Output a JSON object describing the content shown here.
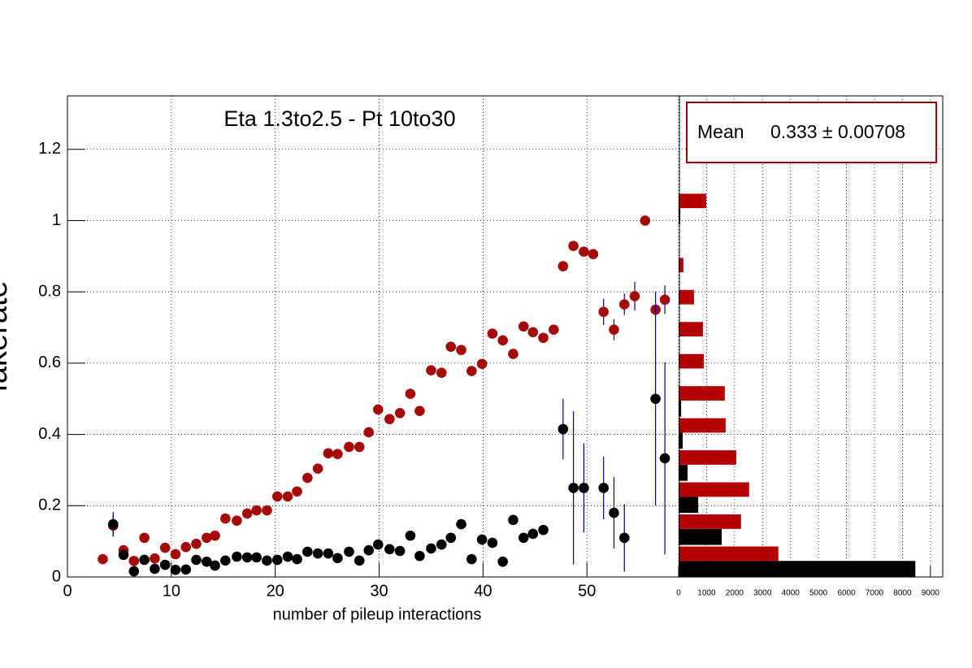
{
  "chart_data": [
    {
      "type": "scatter",
      "title": "Eta 1.3to2.5 - Pt 10to30",
      "xlabel": "number of pileup interactions",
      "ylabel": "fakerate",
      "xlim": [
        0,
        58.9
      ],
      "ylim": [
        0,
        1.35
      ],
      "xticks": [
        0,
        10,
        20,
        30,
        40,
        50
      ],
      "yticks": [
        0,
        0.2,
        0.4,
        0.6,
        0.8,
        1,
        1.2
      ],
      "grid": true,
      "error_color": "#000080",
      "series": [
        {
          "color": "#a50a0a",
          "x": [
            3.4,
            4.4,
            5.4,
            6.4,
            7.4,
            8.4,
            9.4,
            10.4,
            11.4,
            12.4,
            13.4,
            14.2,
            15.2,
            16.3,
            17.3,
            18.2,
            19.2,
            20.2,
            21.2,
            22.1,
            23.1,
            24.1,
            25.1,
            26.0,
            27.1,
            28.1,
            29.0,
            29.9,
            31.0,
            32.0,
            33.0,
            33.9,
            35.0,
            36.0,
            36.9,
            37.9,
            38.9,
            39.9,
            40.9,
            41.9,
            42.9,
            43.9,
            44.8,
            45.8,
            46.8,
            47.7,
            48.7,
            49.7,
            50.6,
            51.6,
            52.6,
            53.6,
            54.6,
            55.6,
            56.6,
            57.5
          ],
          "values": [
            0.05,
            0.144,
            0.075,
            0.045,
            0.11,
            0.052,
            0.082,
            0.064,
            0.084,
            0.093,
            0.11,
            0.116,
            0.164,
            0.158,
            0.178,
            0.187,
            0.187,
            0.226,
            0.226,
            0.24,
            0.278,
            0.304,
            0.347,
            0.345,
            0.365,
            0.365,
            0.406,
            0.47,
            0.443,
            0.46,
            0.514,
            0.466,
            0.58,
            0.573,
            0.646,
            0.637,
            0.578,
            0.598,
            0.683,
            0.664,
            0.626,
            0.703,
            0.687,
            0.671,
            0.694,
            0.872,
            0.929,
            0.913,
            0.906,
            0.744,
            0.694,
            0.765,
            0.788,
            1.0,
            0.75,
            0.778
          ],
          "errors": [
            0,
            0.03,
            0,
            0,
            0,
            0,
            0,
            0,
            0,
            0,
            0,
            0,
            0,
            0,
            0,
            0,
            0,
            0,
            0,
            0,
            0,
            0,
            0,
            0,
            0,
            0,
            0,
            0,
            0,
            0,
            0,
            0,
            0,
            0,
            0,
            0,
            0,
            0,
            0,
            0,
            0,
            0,
            0,
            0,
            0,
            0,
            0,
            0,
            0,
            0.037,
            0.03,
            0.03,
            0.04,
            0,
            0,
            0.04
          ]
        },
        {
          "color": "#000000",
          "x": [
            4.4,
            5.4,
            6.4,
            7.4,
            8.4,
            9.4,
            10.4,
            11.4,
            12.4,
            13.4,
            14.2,
            15.2,
            16.3,
            17.3,
            18.2,
            19.2,
            20.2,
            21.2,
            22.1,
            23.1,
            24.1,
            25.1,
            26.0,
            27.1,
            28.1,
            29.0,
            29.9,
            31.0,
            32.0,
            33.0,
            33.9,
            35.0,
            36.0,
            36.9,
            37.9,
            38.9,
            39.9,
            40.9,
            41.9,
            42.9,
            43.9,
            44.8,
            45.8,
            47.7,
            48.7,
            49.7,
            51.6,
            52.6,
            53.6,
            56.6,
            57.5
          ],
          "values": [
            0.148,
            0.062,
            0.016,
            0.048,
            0.023,
            0.034,
            0.02,
            0.021,
            0.048,
            0.043,
            0.032,
            0.046,
            0.057,
            0.055,
            0.055,
            0.046,
            0.048,
            0.057,
            0.05,
            0.071,
            0.066,
            0.066,
            0.053,
            0.071,
            0.046,
            0.075,
            0.091,
            0.078,
            0.073,
            0.116,
            0.059,
            0.08,
            0.091,
            0.11,
            0.148,
            0.05,
            0.105,
            0.096,
            0.043,
            0.16,
            0.11,
            0.121,
            0.132,
            0.415,
            0.25,
            0.25,
            0.25,
            0.18,
            0.11,
            0.5,
            0.333
          ],
          "errors": [
            0.035,
            0,
            0,
            0,
            0,
            0,
            0,
            0,
            0,
            0,
            0,
            0,
            0,
            0,
            0,
            0,
            0,
            0,
            0,
            0,
            0,
            0,
            0,
            0,
            0,
            0,
            0,
            0,
            0,
            0,
            0,
            0,
            0,
            0,
            0,
            0,
            0,
            0,
            0,
            0,
            0,
            0,
            0,
            0.085,
            0.215,
            0.125,
            0.088,
            0.1,
            0.095,
            0.3,
            0.27
          ]
        }
      ]
    },
    {
      "type": "histogram",
      "orientation": "horizontal",
      "bins": [
        0,
        0.09,
        0.18,
        0.27,
        0.36,
        0.45,
        0.54,
        0.63,
        0.72,
        0.81,
        0.9,
        0.99,
        1.08
      ],
      "xlim": [
        0,
        9440
      ],
      "ylim": [
        0,
        1.35
      ],
      "xticks": [
        0,
        1000,
        2000,
        3000,
        4000,
        5000,
        6000,
        7000,
        8000,
        9000
      ],
      "grid": true,
      "series": [
        {
          "color": "#000000",
          "values": [
            8460,
            1540,
            700,
            320,
            145,
            90,
            0,
            0,
            0,
            0,
            0,
            60
          ]
        },
        {
          "color": "#b40000",
          "values": [
            3565,
            2230,
            2520,
            2060,
            1680,
            1650,
            900,
            870,
            550,
            170,
            0,
            985
          ]
        }
      ],
      "stats": {
        "label": "Mean",
        "value": "0.333 ± 0.00708",
        "border_color": "#9a0000"
      }
    }
  ]
}
